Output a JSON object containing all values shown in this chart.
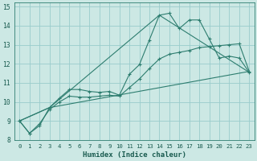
{
  "xlabel": "Humidex (Indice chaleur)",
  "background_color": "#cce8e4",
  "grid_color": "#99cccc",
  "line_color": "#2d7d6f",
  "xlim": [
    -0.5,
    23.5
  ],
  "ylim": [
    8,
    15.2
  ],
  "yticks": [
    8,
    9,
    10,
    11,
    12,
    13,
    14,
    15
  ],
  "xticks": [
    0,
    1,
    2,
    3,
    4,
    5,
    6,
    7,
    8,
    9,
    10,
    11,
    12,
    13,
    14,
    15,
    16,
    17,
    18,
    19,
    20,
    21,
    22,
    23
  ],
  "series1_x": [
    0,
    1,
    2,
    3,
    4,
    5,
    6,
    7,
    8,
    9,
    10,
    11,
    12,
    13,
    14,
    15,
    16,
    17,
    18,
    19,
    20,
    21,
    22,
    23
  ],
  "series1_y": [
    9.0,
    8.35,
    8.75,
    9.7,
    10.2,
    10.65,
    10.65,
    10.55,
    10.5,
    10.55,
    10.35,
    11.45,
    11.95,
    13.25,
    14.55,
    14.65,
    13.85,
    14.3,
    14.3,
    13.3,
    12.3,
    12.4,
    12.3,
    11.55
  ],
  "series2_x": [
    0,
    1,
    2,
    3,
    4,
    5,
    6,
    7,
    8,
    9,
    10,
    11,
    12,
    13,
    14,
    15,
    16,
    17,
    18,
    19,
    20,
    21,
    22,
    23
  ],
  "series2_y": [
    9.0,
    8.35,
    8.85,
    9.6,
    10.0,
    10.3,
    10.25,
    10.25,
    10.3,
    10.35,
    10.3,
    10.75,
    11.2,
    11.75,
    12.25,
    12.5,
    12.6,
    12.7,
    12.85,
    12.9,
    12.95,
    13.0,
    13.05,
    11.6
  ],
  "series3_x": [
    0,
    3,
    23
  ],
  "series3_y": [
    9.0,
    9.7,
    11.6
  ],
  "series4_x": [
    0,
    3,
    14,
    23
  ],
  "series4_y": [
    9.0,
    9.7,
    14.55,
    11.55
  ]
}
